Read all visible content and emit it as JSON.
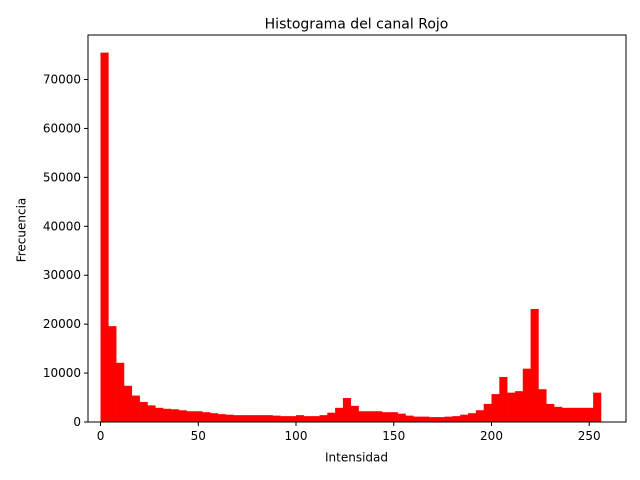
{
  "chart_data": {
    "type": "bar",
    "title": "Histograma del canal Rojo",
    "xlabel": "Intensidad",
    "ylabel": "Frecuencia",
    "xlim": [
      -6.4,
      268.8
    ],
    "ylim": [
      0,
      79100
    ],
    "xticks": [
      0,
      50,
      100,
      150,
      200,
      250
    ],
    "yticks": [
      0,
      10000,
      20000,
      30000,
      40000,
      50000,
      60000,
      70000
    ],
    "bar_color": "#ff0000",
    "bin_width": 4,
    "bin_starts": [
      0,
      4,
      8,
      12,
      16,
      20,
      24,
      28,
      32,
      36,
      40,
      44,
      48,
      52,
      56,
      60,
      64,
      68,
      72,
      76,
      80,
      84,
      88,
      92,
      96,
      100,
      104,
      108,
      112,
      116,
      120,
      124,
      128,
      132,
      136,
      140,
      144,
      148,
      152,
      156,
      160,
      164,
      168,
      172,
      176,
      180,
      184,
      188,
      192,
      196,
      200,
      204,
      208,
      212,
      216,
      220,
      224,
      228,
      232,
      236,
      240,
      244,
      248,
      252
    ],
    "values": [
      75500,
      19600,
      12100,
      7400,
      5400,
      4100,
      3400,
      2900,
      2700,
      2600,
      2400,
      2200,
      2200,
      2000,
      1800,
      1600,
      1500,
      1400,
      1400,
      1400,
      1400,
      1400,
      1300,
      1200,
      1200,
      1400,
      1200,
      1200,
      1400,
      1900,
      2900,
      4900,
      3300,
      2200,
      2200,
      2200,
      2000,
      2000,
      1700,
      1300,
      1100,
      1100,
      1000,
      1000,
      1100,
      1200,
      1500,
      1800,
      2400,
      3700,
      5700,
      9200,
      6000,
      6300,
      10900,
      23100,
      6700,
      3700,
      3100,
      2900,
      2900,
      2900,
      2900,
      6000
    ]
  }
}
